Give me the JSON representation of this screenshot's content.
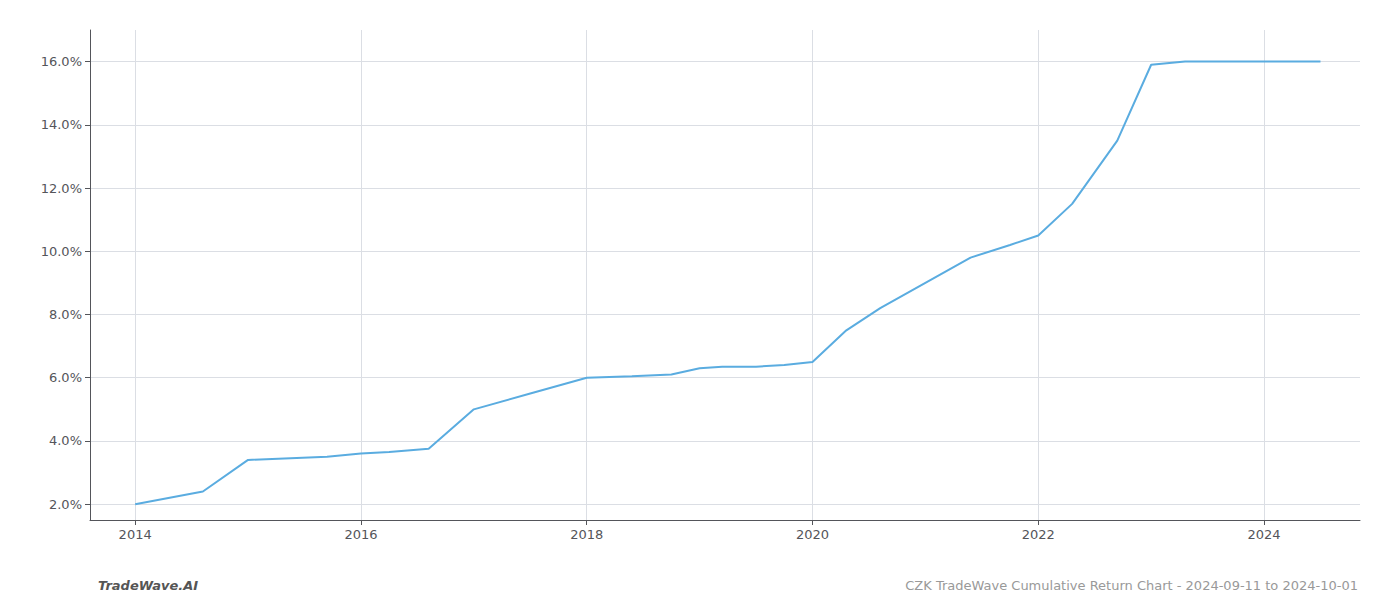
{
  "chart_data": {
    "type": "line",
    "x": [
      2014.0,
      2014.6,
      2015.0,
      2015.7,
      2016.0,
      2016.25,
      2016.6,
      2017.0,
      2017.5,
      2018.0,
      2018.4,
      2018.75,
      2019.0,
      2019.2,
      2019.5,
      2019.75,
      2020.0,
      2020.3,
      2020.6,
      2021.0,
      2021.4,
      2021.75,
      2022.0,
      2022.3,
      2022.7,
      2023.0,
      2023.3,
      2023.6,
      2024.0,
      2024.5
    ],
    "values": [
      2.0,
      2.4,
      3.4,
      3.5,
      3.6,
      3.65,
      3.75,
      5.0,
      5.5,
      6.0,
      6.05,
      6.1,
      6.3,
      6.35,
      6.35,
      6.4,
      6.5,
      7.5,
      8.2,
      9.0,
      9.8,
      10.2,
      10.5,
      11.5,
      13.5,
      15.9,
      16.0,
      16.0,
      16.0,
      16.0
    ],
    "color": "#5aace0",
    "xlim": [
      2013.6,
      2024.85
    ],
    "xticks": [
      2014,
      2016,
      2018,
      2020,
      2022,
      2024
    ],
    "ylim": [
      1.5,
      17.0
    ],
    "yticks": [
      {
        "value": 2.0,
        "label": "2.0%"
      },
      {
        "value": 4.0,
        "label": "4.0%"
      },
      {
        "value": 6.0,
        "label": "6.0%"
      },
      {
        "value": 8.0,
        "label": "8.0%"
      },
      {
        "value": 10.0,
        "label": "10.0%"
      },
      {
        "value": 12.0,
        "label": "12.0%"
      },
      {
        "value": 14.0,
        "label": "14.0%"
      },
      {
        "value": 16.0,
        "label": "16.0%"
      }
    ],
    "grid": true,
    "annotations": [
      "TradeWave.AI",
      "CZK TradeWave Cumulative Return Chart - 2024-09-11 to 2024-10-01"
    ]
  }
}
